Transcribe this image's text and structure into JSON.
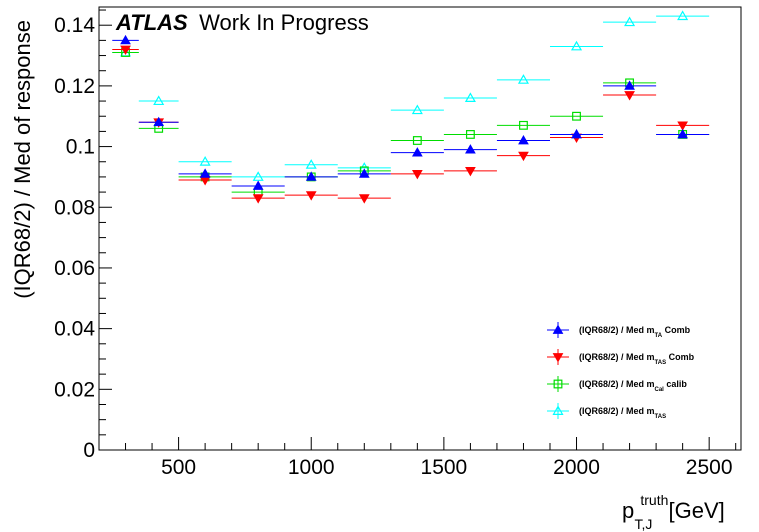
{
  "chart_data": {
    "type": "scatter",
    "title": "",
    "label": {
      "bold": "ATLAS",
      "rest": "Work In Progress"
    },
    "ylabel": "(IQR68/2) / Med of response",
    "xlabel": {
      "base": "p",
      "sup": "truth",
      "sub": "T,J",
      "unit": "[GeV]"
    },
    "xlim": [
      200,
      2620
    ],
    "ylim": [
      0,
      0.146
    ],
    "x_ticks": [
      500,
      1000,
      1500,
      2000,
      2500
    ],
    "x_tick_labels": [
      "500",
      "1000",
      "1500",
      "2000",
      "2500"
    ],
    "y_ticks": [
      0,
      0.02,
      0.04,
      0.06,
      0.08,
      0.1,
      0.12,
      0.14
    ],
    "y_tick_labels": [
      "0",
      "0.02",
      "0.04",
      "0.06",
      "0.08",
      "0.1",
      "0.12",
      "0.14"
    ],
    "x": [
      300,
      425,
      600,
      800,
      1000,
      1200,
      1400,
      1600,
      1800,
      2000,
      2200,
      2400
    ],
    "x_low": [
      250,
      350,
      500,
      700,
      900,
      1100,
      1300,
      1500,
      1700,
      1900,
      2100,
      2300
    ],
    "x_high": [
      350,
      500,
      700,
      900,
      1100,
      1300,
      1500,
      1700,
      1900,
      2100,
      2300,
      2500
    ],
    "legend_position": "lower-right",
    "series": [
      {
        "name": "(IQR68/2) / Med  m",
        "sub": "TA",
        "suffix": " Comb",
        "marker": "triangle-up-filled",
        "color": "#0000ff",
        "values": [
          0.135,
          0.108,
          0.091,
          0.087,
          0.09,
          0.091,
          0.098,
          0.099,
          0.102,
          0.104,
          0.12,
          0.104
        ]
      },
      {
        "name": "(IQR68/2) / Med  m",
        "sub": "TAS",
        "suffix": " Comb",
        "marker": "triangle-down-filled",
        "color": "#ff0000",
        "values": [
          0.132,
          0.108,
          0.089,
          0.083,
          0.084,
          0.083,
          0.091,
          0.092,
          0.097,
          0.103,
          0.117,
          0.107
        ]
      },
      {
        "name": "(IQR68/2) / Med  m",
        "sub": "Cal",
        "suffix": " calib",
        "marker": "square-open",
        "color": "#00dd00",
        "values": [
          0.131,
          0.106,
          0.09,
          0.085,
          0.09,
          0.092,
          0.102,
          0.104,
          0.107,
          0.11,
          0.121,
          0.104
        ]
      },
      {
        "name": "(IQR68/2) / Med  m",
        "sub": "TAS",
        "suffix": "",
        "marker": "triangle-up-open",
        "color": "#00ffff",
        "values": [
          0.131,
          0.115,
          0.095,
          0.09,
          0.094,
          0.093,
          0.112,
          0.116,
          0.122,
          0.133,
          0.141,
          0.143
        ]
      }
    ]
  }
}
